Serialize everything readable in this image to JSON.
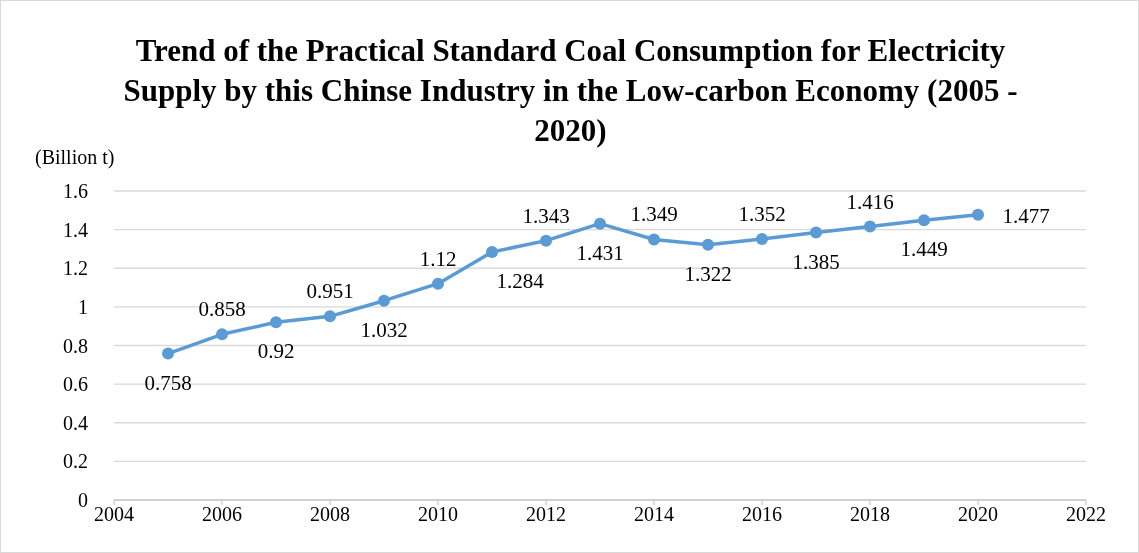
{
  "chart_data": {
    "type": "line",
    "title": "Trend of the Practical Standard Coal Consumption for Electricity Supply by this Chinse Industry in the Low-carbon Economy (2005 - 2020)",
    "ylabel": "(Billion t)",
    "x": [
      2005,
      2006,
      2007,
      2008,
      2009,
      2010,
      2011,
      2012,
      2013,
      2014,
      2015,
      2016,
      2017,
      2018,
      2019,
      2020
    ],
    "series": [
      {
        "color": "#5b9bd5",
        "values": [
          0.758,
          0.858,
          0.92,
          0.951,
          1.032,
          1.12,
          1.284,
          1.343,
          1.431,
          1.349,
          1.322,
          1.352,
          1.385,
          1.416,
          1.449,
          1.477
        ]
      }
    ],
    "xlim": [
      2004,
      2022
    ],
    "xticks": [
      2004,
      2006,
      2008,
      2010,
      2012,
      2014,
      2016,
      2018,
      2020,
      2022
    ],
    "ylim": [
      0,
      1.6
    ],
    "yticks": [
      0,
      0.2,
      0.4,
      0.6,
      0.8,
      1,
      1.2,
      1.4,
      1.6
    ],
    "grid": "y",
    "marker": "circle",
    "line_style": "solid",
    "data_labels": true,
    "legend": false
  }
}
